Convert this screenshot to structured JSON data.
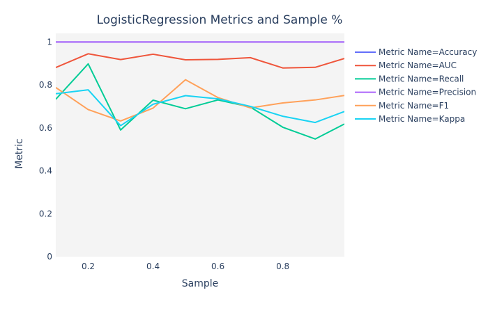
{
  "chart_data": {
    "type": "line",
    "title": "LogisticRegression Metrics and Sample %",
    "xlabel": "Sample",
    "ylabel": "Metric",
    "xlim": [
      0.1,
      0.99
    ],
    "ylim": [
      0,
      1.04
    ],
    "x_ticks": [
      "0.2",
      "0.4",
      "0.6",
      "0.8"
    ],
    "y_ticks": [
      "0",
      "0.2",
      "0.4",
      "0.6",
      "0.8",
      "1"
    ],
    "x_tick_values": [
      0.2,
      0.4,
      0.6,
      0.8
    ],
    "y_tick_values": [
      0,
      0.2,
      0.4,
      0.6,
      0.8,
      1.0
    ],
    "grid": false,
    "plot_background": "#f4f4f4",
    "legend_position": "right",
    "x": [
      0.1,
      0.2,
      0.3,
      0.4,
      0.5,
      0.6,
      0.7,
      0.8,
      0.9,
      0.99
    ],
    "series": [
      {
        "name": "Metric Name=Accuracy",
        "color": "#636efa",
        "values": [
          1.0,
          1.0,
          1.0,
          1.0,
          1.0,
          1.0,
          1.0,
          1.0,
          1.0,
          1.0
        ]
      },
      {
        "name": "Metric Name=AUC",
        "color": "#ef553b",
        "values": [
          0.881,
          0.945,
          0.918,
          0.943,
          0.917,
          0.919,
          0.927,
          0.879,
          0.882,
          0.923
        ]
      },
      {
        "name": "Metric Name=Recall",
        "color": "#00cc96",
        "values": [
          0.733,
          0.898,
          0.59,
          0.729,
          0.689,
          0.73,
          0.697,
          0.603,
          0.548,
          0.618
        ]
      },
      {
        "name": "Metric Name=Precision",
        "color": "#ab63fa",
        "values": [
          1.0,
          1.0,
          1.0,
          1.0,
          1.0,
          1.0,
          1.0,
          1.0,
          1.0,
          1.0
        ]
      },
      {
        "name": "Metric Name=F1",
        "color": "#ffa15a",
        "values": [
          0.788,
          0.685,
          0.632,
          0.692,
          0.824,
          0.741,
          0.693,
          0.716,
          0.73,
          0.751
        ]
      },
      {
        "name": "Metric Name=Kappa",
        "color": "#19d3f3",
        "values": [
          0.759,
          0.777,
          0.61,
          0.71,
          0.75,
          0.735,
          0.7,
          0.654,
          0.625,
          0.676
        ]
      }
    ]
  }
}
